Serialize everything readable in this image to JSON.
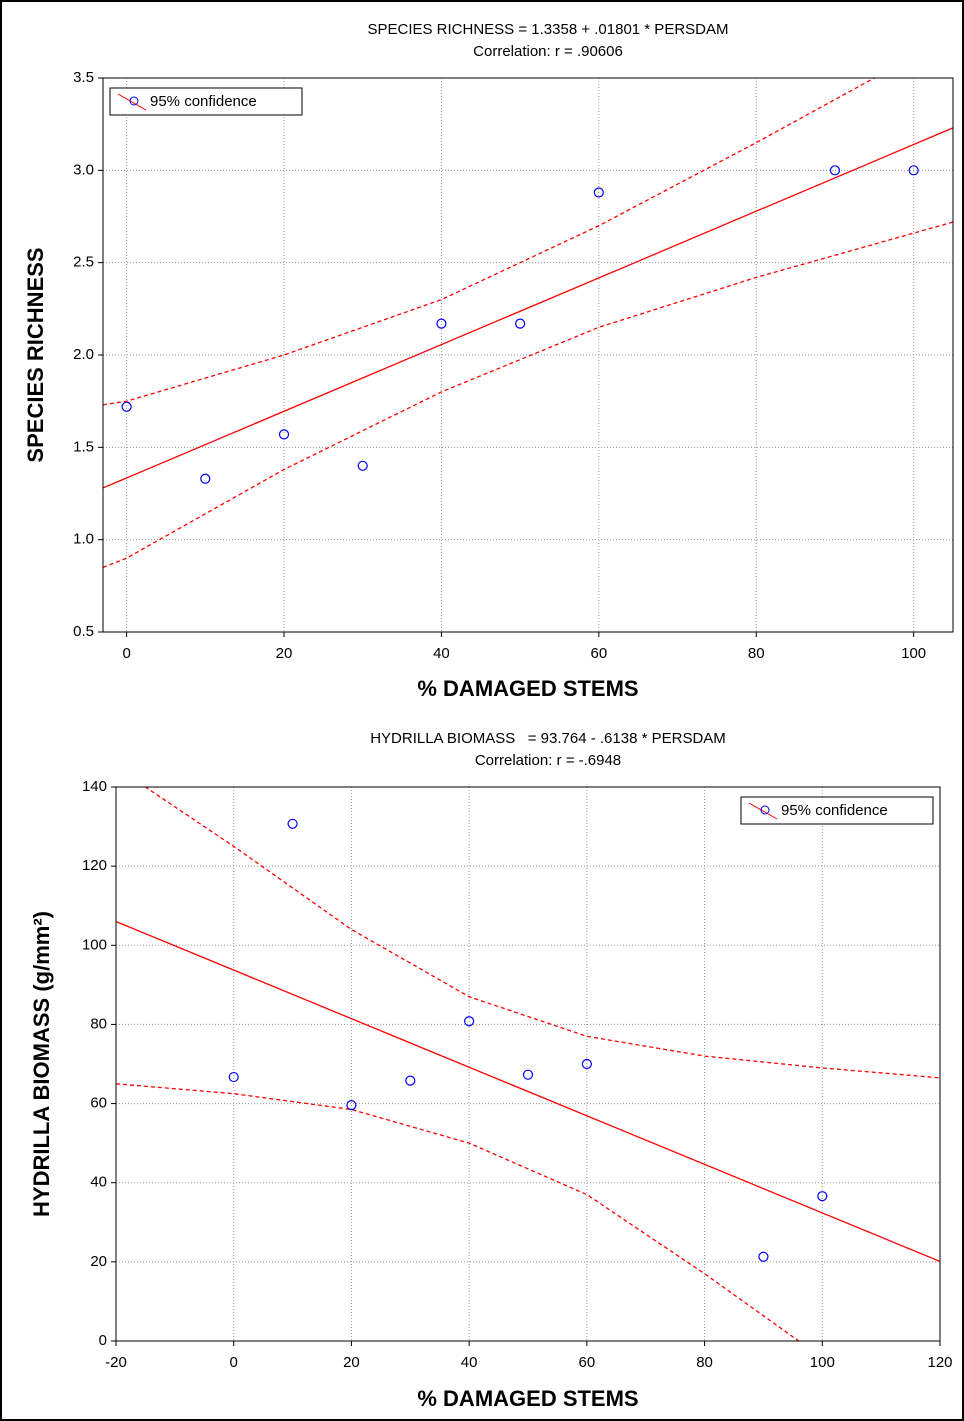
{
  "chart_data": [
    {
      "type": "scatter",
      "title": "SPECIES RICHNESS = 1.3358 + .01801 * PERSDAM",
      "subtitle": "Correlation: r = .90606",
      "x_label": "% DAMAGED STEMS",
      "y_label": "SPECIES RICHNESS",
      "xlim": [
        -3,
        105
      ],
      "ylim": [
        0.5,
        3.5
      ],
      "xticks": [
        0,
        20,
        40,
        60,
        80,
        100
      ],
      "yticks": [
        0.5,
        {
          "value": 1,
          "label": "1.0"
        },
        1.5,
        {
          "value": 2,
          "label": "2.0"
        },
        2.5,
        {
          "value": 3,
          "label": "3.0"
        },
        3.5
      ],
      "grid": true,
      "legend": "upper left",
      "series": [
        {
          "name": "95% confidence",
          "color": "#0000ff",
          "line_color": "#ff0000",
          "x": [
            0,
            10,
            20,
            30,
            40,
            50,
            60,
            90,
            100
          ],
          "values": [
            1.72,
            1.33,
            1.57,
            1.4,
            2.17,
            2.17,
            2.88,
            3.0,
            3.0
          ]
        }
      ],
      "fit": {
        "x": [
          -3,
          105
        ],
        "values": [
          1.28,
          3.23
        ]
      },
      "upper": {
        "x": [
          -3,
          0,
          20,
          40,
          60,
          80,
          95
        ],
        "values": [
          1.73,
          1.75,
          2.0,
          2.3,
          2.7,
          3.15,
          3.5
        ]
      },
      "lower": {
        "x": [
          -3,
          0,
          20,
          40,
          60,
          80,
          105
        ],
        "values": [
          0.85,
          0.9,
          1.38,
          1.8,
          2.15,
          2.42,
          2.72
        ]
      }
    },
    {
      "type": "scatter",
      "title": "HYDRILLA BIOMASS   = 93.764 - .6138 * PERSDAM",
      "subtitle": "Correlation: r = -.6948",
      "x_label": "% DAMAGED STEMS",
      "y_label": "HYDRILLA BIOMASS (g/mm²)",
      "xlim": [
        -20,
        120
      ],
      "ylim": [
        0,
        140
      ],
      "xticks": [
        -20,
        0,
        20,
        40,
        60,
        80,
        100,
        120
      ],
      "yticks": [
        0,
        20,
        40,
        60,
        80,
        100,
        120,
        140
      ],
      "grid": true,
      "legend": "upper right",
      "series": [
        {
          "name": "95% confidence",
          "color": "#0000ff",
          "line_color": "#ff0000",
          "x": [
            0,
            10,
            20,
            30,
            40,
            50,
            60,
            90,
            100
          ],
          "values": [
            66.7,
            130.7,
            59.6,
            65.8,
            80.8,
            67.3,
            70,
            21.3,
            36.6
          ]
        }
      ],
      "fit": {
        "x": [
          -20,
          120
        ],
        "values": [
          106,
          20.1
        ]
      },
      "upper": {
        "x": [
          -20,
          0,
          20,
          40,
          60,
          80,
          100,
          120
        ],
        "values": [
          145,
          125,
          104,
          87,
          77,
          72,
          69,
          66.5
        ]
      },
      "lower": {
        "x": [
          -20,
          0,
          20,
          40,
          60,
          80,
          96
        ],
        "values": [
          65,
          62.5,
          58.5,
          50,
          37,
          17,
          0
        ]
      }
    }
  ]
}
